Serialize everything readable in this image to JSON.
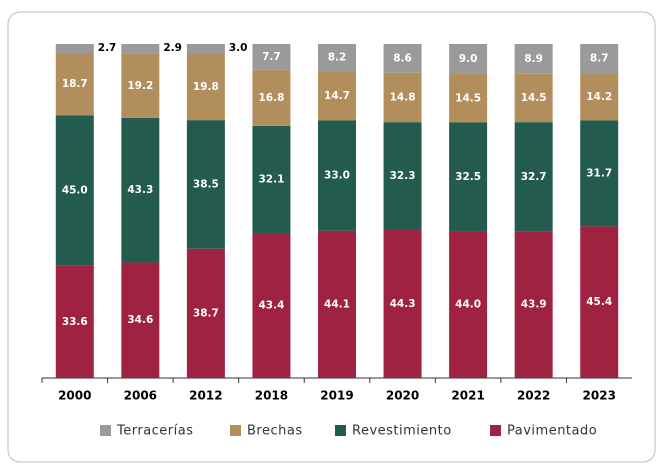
{
  "chart_data": {
    "type": "stacked_bar",
    "categories": [
      "2000",
      "2006",
      "2012",
      "2018",
      "2019",
      "2020",
      "2021",
      "2022",
      "2023"
    ],
    "ylim": [
      0,
      100
    ],
    "series": [
      {
        "name": "Pavimentado",
        "color": "#9f2241",
        "values": [
          33.6,
          34.6,
          38.7,
          43.4,
          44.1,
          44.3,
          44.0,
          43.9,
          45.4
        ],
        "value_labels": [
          "33.6",
          "34.6",
          "38.7",
          "43.4",
          "44.1",
          "44.3",
          "44.0",
          "43.9",
          "45.4"
        ]
      },
      {
        "name": "Revestimiento",
        "color": "#235b4e",
        "values": [
          45.0,
          43.3,
          38.5,
          32.1,
          33.0,
          32.3,
          32.5,
          32.7,
          31.7
        ],
        "value_labels": [
          "45.0",
          "43.3",
          "38.5",
          "32.1",
          "33.0",
          "32.3",
          "32.5",
          "32.7",
          "31.7"
        ]
      },
      {
        "name": "Brechas",
        "color": "#b38e5d",
        "values": [
          18.7,
          19.2,
          19.8,
          16.8,
          14.7,
          14.8,
          14.5,
          14.5,
          14.2
        ],
        "value_labels": [
          "18.7",
          "19.2",
          "19.8",
          "16.8",
          "14.7",
          "14.8",
          "14.5",
          "14.5",
          "14.2"
        ]
      },
      {
        "name": "Terracerías",
        "color": "#9a9a9a",
        "values": [
          2.7,
          2.9,
          3.0,
          7.7,
          8.2,
          8.6,
          9.0,
          8.9,
          8.7
        ],
        "value_labels": [
          "2.7",
          "2.9",
          "3.0",
          "7.7",
          "8.2",
          "8.6",
          "9.0",
          "8.9",
          "8.7"
        ]
      }
    ]
  }
}
